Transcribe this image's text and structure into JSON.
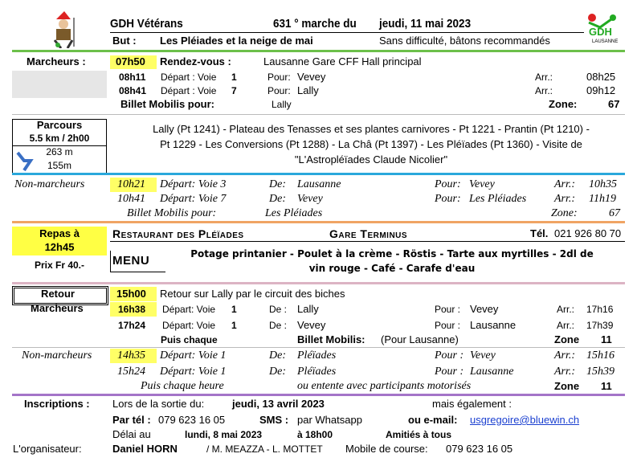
{
  "header": {
    "org": "GDH  Vétérans",
    "event": "631 ° marche du",
    "date": "jeudi, 11 mai 2023",
    "goal_label": "But :",
    "goal": "Les Pléiades et la neige de mai",
    "note": "Sans difficulté, bâtons recommandés",
    "logo_text": "GDH",
    "logo_sub": "LAUSANNE"
  },
  "walkers": {
    "label": "Marcheurs :",
    "meet_time": "07h50",
    "meet_label": "Rendez-vous :",
    "meet_place": "Lausanne Gare CFF Hall principal",
    "trains": [
      [
        "08h11",
        "Départ :  Voie",
        1,
        "Pour:",
        "Vevey",
        "Arr.:",
        "08h25"
      ],
      [
        "08h41",
        "Départ :  Voie",
        7,
        "Pour:",
        "Lally",
        "Arr.:",
        "09h12"
      ]
    ],
    "ticket_label": "Billet Mobilis pour:",
    "ticket_dest": "Lally",
    "zone_label": "Zone:",
    "zone": 67
  },
  "route": {
    "label": "Parcours",
    "distance": "5.5 km / 2h00",
    "ascent": "263 m",
    "descent": "155m",
    "lines": [
      "Lally  (Pt 1241) - Plateau des Tenasses et ses plantes carnivores - Pt 1221 - Prantin (Pt 1210) -",
      "Pt 1229 - Les Conversions (Pt 1288) - La Châ (Pt 1397) - Les Pléïades (Pt 1360) - Visite de",
      "\"L'Astropléïades Claude Nicolier\""
    ]
  },
  "non_walkers": {
    "label": "Non-marcheurs",
    "trains": [
      [
        "10h21",
        "Départ:  Voie 3",
        "De:",
        "Lausanne",
        "Pour:",
        "Vevey",
        "Arr.:",
        "10h35"
      ],
      [
        "10h41",
        "Départ:  Voie 7",
        "De:",
        "Vevey",
        "Pour:",
        "Les Pléiades",
        "Arr.:",
        "11h19"
      ]
    ],
    "ticket_label": "Billet Mobilis pour:",
    "ticket_dest": "Les Pléiades",
    "zone_label": "Zone:",
    "zone": 67
  },
  "meal": {
    "label": "Repas à",
    "time": "12h45",
    "price": "Prix Fr 40.-",
    "restaurant": "Restaurant des Pléïades",
    "address": "Gare Terminus",
    "tel_label": "Tél.",
    "tel": "021 926 80 70",
    "menu_label": "MENU",
    "menu": [
      "Potage printanier - Poulet à la crème - Röstis - Tarte aux myrtilles - 2dl de",
      "vin  rouge - Café - Carafe d'eau"
    ]
  },
  "return": {
    "label": "Retour",
    "time": "15h00",
    "desc": "Retour sur Lally par le circuit des biches",
    "walkers_label": "Marcheurs",
    "trains": [
      [
        "16h38",
        "Départ:  Voie",
        1,
        "De :",
        "Lally",
        "Pour :",
        "Vevey",
        "Arr.:",
        "17h16"
      ],
      [
        "17h24",
        "Départ:  Voie",
        1,
        "De :",
        "Vevey",
        "Pour :",
        "Lausanne",
        "Arr.:",
        "17h39"
      ]
    ],
    "frequency": "Puis chaque",
    "ticket_label": "Billet Mobilis:",
    "ticket_dest": "(Pour Lausanne)",
    "zone_label": "Zone",
    "zone": 11,
    "non_walkers_label": "Non-marcheurs",
    "nw_trains": [
      [
        "14h35",
        "Départ:  Voie  1",
        "De:",
        "Pléïades",
        "Pour :",
        "Vevey",
        "Arr.:",
        "15h16"
      ],
      [
        "15h24",
        "Départ:  Voie  1",
        "De:",
        "Pléïades",
        "Pour :",
        "Lausanne",
        "Arr.:",
        "15h39"
      ]
    ],
    "nw_frequency": "Puis chaque   heure",
    "nw_note": "ou entente avec participants motorisés",
    "nw_zone_label": "Zone",
    "nw_zone": 11
  },
  "registration": {
    "label": "Inscriptions :",
    "when": "Lors de la sortie du:",
    "date": "jeudi, 13 avril 2023",
    "also": "mais également :",
    "tel_label": "Par tél :",
    "tel": "079 623 16 05",
    "sms_label": "SMS :",
    "sms": "par Whatsapp",
    "email_label": "ou e-mail:",
    "email": "usgregoire@bluewin.ch",
    "deadline_label": "Délai au",
    "deadline": "lundi, 8 mai 2023",
    "deadline_time": "à 18h00",
    "greeting": "Amitiés à tous",
    "organizer_label": "L'organisateur:",
    "organizer": "Daniel HORN",
    "co": "/ M. MEAZZA - L. MOTTET",
    "mobile_label": "Mobile de course:",
    "mobile": "079 623 16 05"
  }
}
